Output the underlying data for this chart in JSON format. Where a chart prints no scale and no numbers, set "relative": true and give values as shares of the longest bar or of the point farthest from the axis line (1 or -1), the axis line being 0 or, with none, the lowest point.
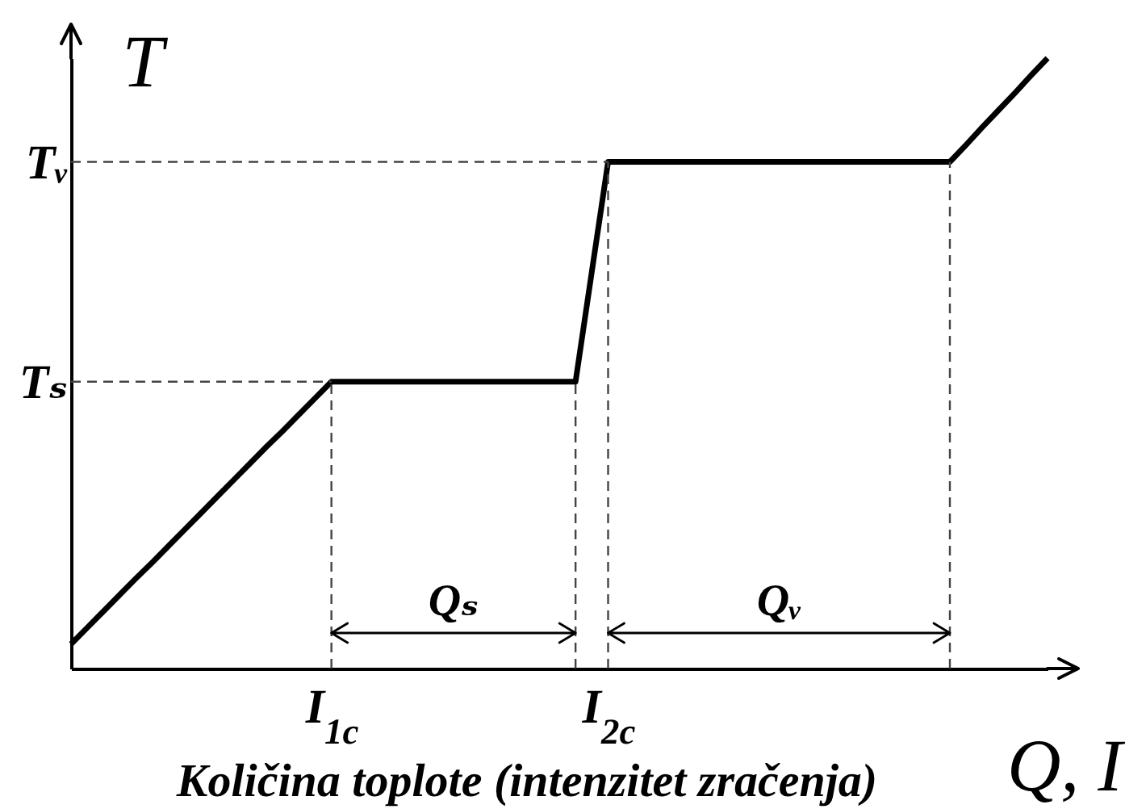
{
  "chart_data": {
    "type": "line",
    "xlabel": "Q, I",
    "ylabel": "T",
    "annotations": [
      "Qₛ",
      "Qᵥ",
      "Količina toplote (intenzitet zračenja)"
    ],
    "categories": [
      null,
      null,
      null,
      null,
      null,
      null,
      null,
      null,
      null,
      null,
      null,
      null,
      null,
      null,
      null,
      null,
      "I$_{1c}$",
      null,
      null,
      null,
      null,
      null,
      null,
      null,
      null,
      null,
      null,
      null,
      null,
      null,
      null,
      null,
      null,
      "I$_{2c}$",
      null,
      null,
      null,
      null,
      null,
      null,
      null,
      null,
      null,
      null,
      null,
      null,
      null,
      null,
      null,
      null,
      null,
      null,
      null,
      null,
      null,
      null,
      null,
      null,
      null,
      null,
      null
    ],
    "values": [
      0.04,
      0.067,
      0.094,
      0.121,
      0.148,
      0.174,
      0.201,
      0.228,
      0.255,
      0.282,
      0.309,
      0.336,
      0.363,
      0.389,
      0.416,
      0.443,
      0.47,
      0.47,
      0.47,
      0.47,
      0.47,
      0.47,
      0.47,
      0.47,
      0.47,
      0.47,
      0.47,
      0.47,
      0.47,
      0.47,
      0.47,
      0.47,
      0.65,
      0.83,
      0.83,
      0.83,
      0.83,
      0.83,
      0.83,
      0.83,
      0.83,
      0.83,
      0.83,
      0.83,
      0.83,
      0.83,
      0.83,
      0.83,
      0.83,
      0.83,
      0.83,
      0.83,
      0.83,
      0.83,
      0.83,
      0.858,
      0.887,
      0.915,
      0.943,
      0.972,
      1
    ],
    "color": "#000000",
    "relative": true,
    "ref_lines": [
      {
        "axis": "y",
        "value": 0.47,
        "label": "Tₛ",
        "line_style": "dashed",
        "color": "#444444"
      },
      {
        "axis": "y",
        "value": 0.83,
        "label": "Tᵥ",
        "line_style": "dashed",
        "color": "#444444"
      },
      {
        "axis": "x",
        "value": "I$_{1c}$",
        "line_style": "dashed",
        "color": "#444444"
      },
      {
        "axis": "x",
        "value": "I$_{2c}$",
        "line_style": "dashed",
        "color": "#444444"
      }
    ]
  }
}
